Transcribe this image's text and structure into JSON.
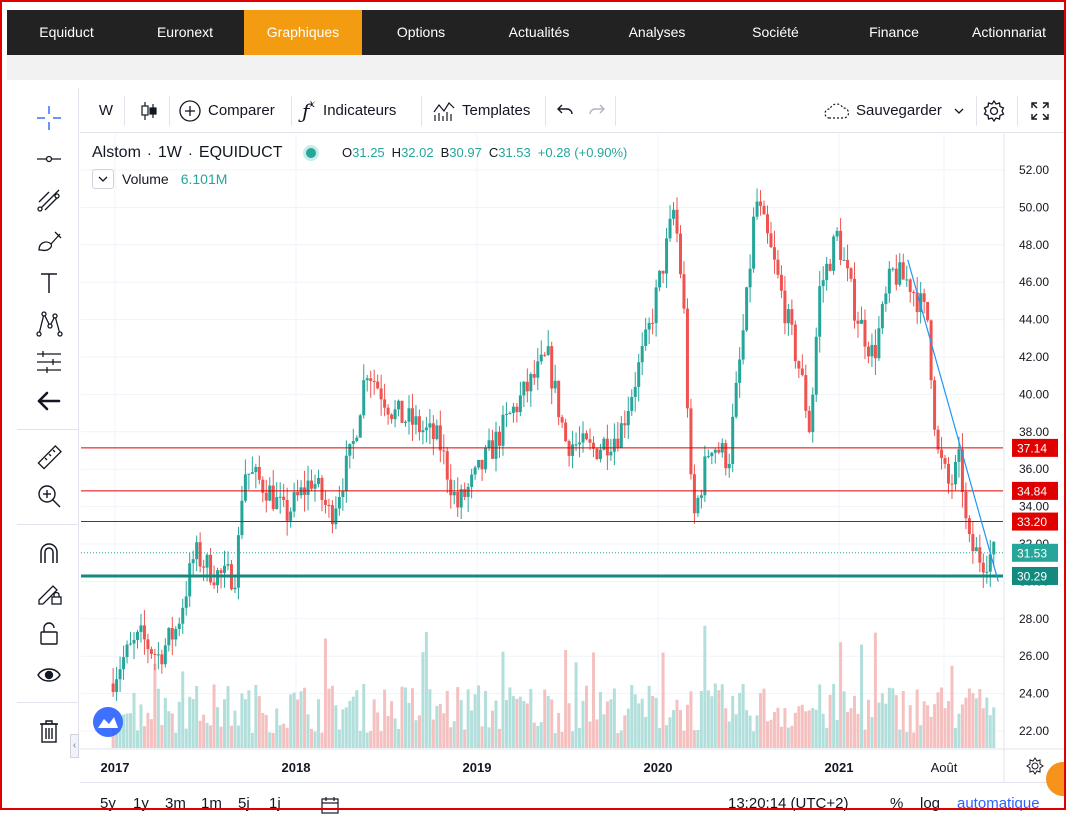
{
  "nav": {
    "items": [
      "Equiduct",
      "Euronext",
      "Graphiques",
      "Options",
      "Actualités",
      "Analyses",
      "Société",
      "Finance",
      "Actionnariat"
    ],
    "active_index": 2,
    "active_color": "#f39c12"
  },
  "toolbar": {
    "interval": "W",
    "compare_label": "Comparer",
    "indicators_label": "Indicateurs",
    "templates_label": "Templates",
    "save_label": "Sauvegarder"
  },
  "legend": {
    "symbol": "Alstom",
    "sep1": "·",
    "interval": "1W",
    "sep2": "·",
    "exchange": "EQUIDUCT",
    "o_key": "O",
    "o_val": "31.25",
    "h_key": "H",
    "h_val": "32.02",
    "b_key": "B",
    "b_val": "30.97",
    "c_key": "C",
    "c_val": "31.53",
    "change": "+0.28 (+0.90%)",
    "volume_label": "Volume",
    "volume_value": "6.101M"
  },
  "left_tools": [
    "crosshair-icon",
    "trend-line-icon",
    "fib-icon",
    "brush-icon",
    "text-icon",
    "pattern-icon",
    "measure-icon",
    "back-arrow-icon",
    "ruler-icon",
    "zoom-in-icon",
    "magnet-icon",
    "lock-draw-icon",
    "lock-icon",
    "eye-icon",
    "trash-icon"
  ],
  "bottom": {
    "ranges": [
      "5y",
      "1y",
      "3m",
      "1m",
      "5j",
      "1j"
    ],
    "clock": "13:20:14 (UTC+2)",
    "percent": "%",
    "log": "log",
    "auto": "automatique"
  },
  "colors": {
    "up": "#26a69a",
    "down": "#ef5350",
    "hline": "#e00000",
    "support": "#138a7d",
    "trend": "#2196f3"
  },
  "chart_data": {
    "type": "candlestick",
    "title": "Alstom · 1W · EQUIDUCT",
    "x_labels": [
      "2017",
      "2018",
      "2019",
      "2020",
      "2021",
      "Août"
    ],
    "y_ticks": [
      52,
      50,
      48,
      46,
      44,
      42,
      40,
      38,
      36,
      34,
      32,
      30,
      28,
      26,
      24,
      22
    ],
    "ylim": [
      21,
      52.5
    ],
    "horizontal_levels": [
      37.14,
      34.84,
      33.2
    ],
    "last_price": 31.53,
    "support_level": 30.29,
    "price_path": [
      [
        2016.95,
        24.0
      ],
      [
        2017.05,
        25.8
      ],
      [
        2017.15,
        27.0
      ],
      [
        2017.25,
        26.0
      ],
      [
        2017.35,
        27.5
      ],
      [
        2017.45,
        31.5
      ],
      [
        2017.55,
        30.5
      ],
      [
        2017.62,
        30.2
      ],
      [
        2017.68,
        30.5
      ],
      [
        2017.72,
        36.0
      ],
      [
        2017.85,
        35.0
      ],
      [
        2017.95,
        33.5
      ],
      [
        2018.1,
        35.5
      ],
      [
        2018.2,
        33.5
      ],
      [
        2018.32,
        37.0
      ],
      [
        2018.4,
        41.5
      ],
      [
        2018.55,
        39.0
      ],
      [
        2018.65,
        38.5
      ],
      [
        2018.8,
        37.5
      ],
      [
        2018.9,
        34.0
      ],
      [
        2019.0,
        35.5
      ],
      [
        2019.2,
        39.0
      ],
      [
        2019.4,
        42.0
      ],
      [
        2019.5,
        37.5
      ],
      [
        2019.65,
        37.0
      ],
      [
        2019.8,
        38.0
      ],
      [
        2019.95,
        43.0
      ],
      [
        2020.05,
        47.5
      ],
      [
        2020.1,
        50.0
      ],
      [
        2020.15,
        45.0
      ],
      [
        2020.2,
        33.0
      ],
      [
        2020.3,
        37.5
      ],
      [
        2020.4,
        36.5
      ],
      [
        2020.5,
        45.0
      ],
      [
        2020.55,
        50.5
      ],
      [
        2020.65,
        47.0
      ],
      [
        2020.8,
        41.0
      ],
      [
        2020.85,
        38.0
      ],
      [
        2020.9,
        45.5
      ],
      [
        2021.0,
        48.5
      ],
      [
        2021.1,
        44.5
      ],
      [
        2021.2,
        42.0
      ],
      [
        2021.3,
        46.5
      ],
      [
        2021.4,
        46.0
      ],
      [
        2021.5,
        44.0
      ],
      [
        2021.55,
        37.0
      ],
      [
        2021.62,
        35.0
      ],
      [
        2021.68,
        36.5
      ],
      [
        2021.72,
        32.0
      ],
      [
        2021.8,
        31.2
      ],
      [
        2021.88,
        31.5
      ]
    ],
    "trendline": [
      [
        2021.38,
        47.2
      ],
      [
        2021.88,
        30.0
      ]
    ]
  }
}
